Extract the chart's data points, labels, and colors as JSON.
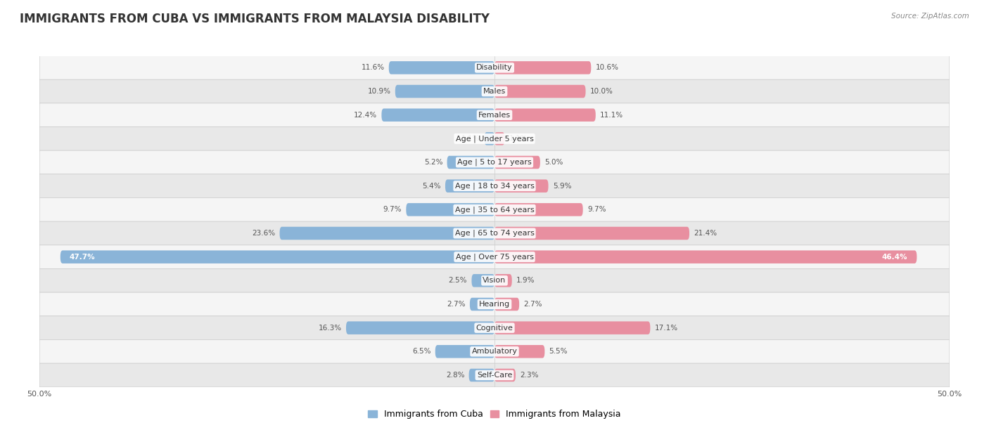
{
  "title": "IMMIGRANTS FROM CUBA VS IMMIGRANTS FROM MALAYSIA DISABILITY",
  "source": "Source: ZipAtlas.com",
  "categories": [
    "Disability",
    "Males",
    "Females",
    "Age | Under 5 years",
    "Age | 5 to 17 years",
    "Age | 18 to 34 years",
    "Age | 35 to 64 years",
    "Age | 65 to 74 years",
    "Age | Over 75 years",
    "Vision",
    "Hearing",
    "Cognitive",
    "Ambulatory",
    "Self-Care"
  ],
  "cuba_values": [
    11.6,
    10.9,
    12.4,
    1.1,
    5.2,
    5.4,
    9.7,
    23.6,
    47.7,
    2.5,
    2.7,
    16.3,
    6.5,
    2.8
  ],
  "malaysia_values": [
    10.6,
    10.0,
    11.1,
    1.1,
    5.0,
    5.9,
    9.7,
    21.4,
    46.4,
    1.9,
    2.7,
    17.1,
    5.5,
    2.3
  ],
  "cuba_color": "#8ab4d8",
  "malaysia_color": "#e88fa0",
  "bar_height": 0.52,
  "xlim": 50.0,
  "row_bg_light": "#f5f5f5",
  "row_bg_dark": "#e8e8e8",
  "legend_labels": [
    "Immigrants from Cuba",
    "Immigrants from Malaysia"
  ],
  "title_fontsize": 12,
  "label_fontsize": 8,
  "value_fontsize": 7.5,
  "axis_label_fontsize": 8
}
